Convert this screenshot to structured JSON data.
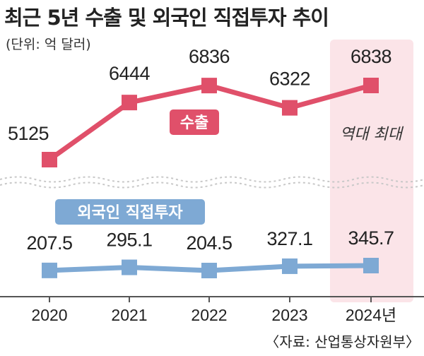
{
  "title": "최근 5년 수출 및 외국인 직접투자 추이",
  "unit_note": "(단위: 억 달러)",
  "source": "〈자료: 산업통상자원부〉",
  "highlight_note": "역대 최대",
  "chart_data": {
    "type": "line",
    "x": [
      "2020",
      "2021",
      "2022",
      "2023",
      "2024년"
    ],
    "series": [
      {
        "name": "수출",
        "values": [
          5125,
          6444,
          6836,
          6322,
          6838
        ],
        "color": "#e0506a"
      },
      {
        "name": "외국인 직접투자",
        "values": [
          207.5,
          295.1,
          204.5,
          327.1,
          345.7
        ],
        "color": "#7ea9d4"
      }
    ],
    "value_labels": [
      [
        "5125",
        "6444",
        "6836",
        "6322",
        "6838"
      ],
      [
        "207.5",
        "295.1",
        "204.5",
        "327.1",
        "345.7"
      ]
    ],
    "highlight_category": "2024년",
    "highlight_color": "#fbe4e8",
    "broken_axis": true,
    "grid": false
  }
}
